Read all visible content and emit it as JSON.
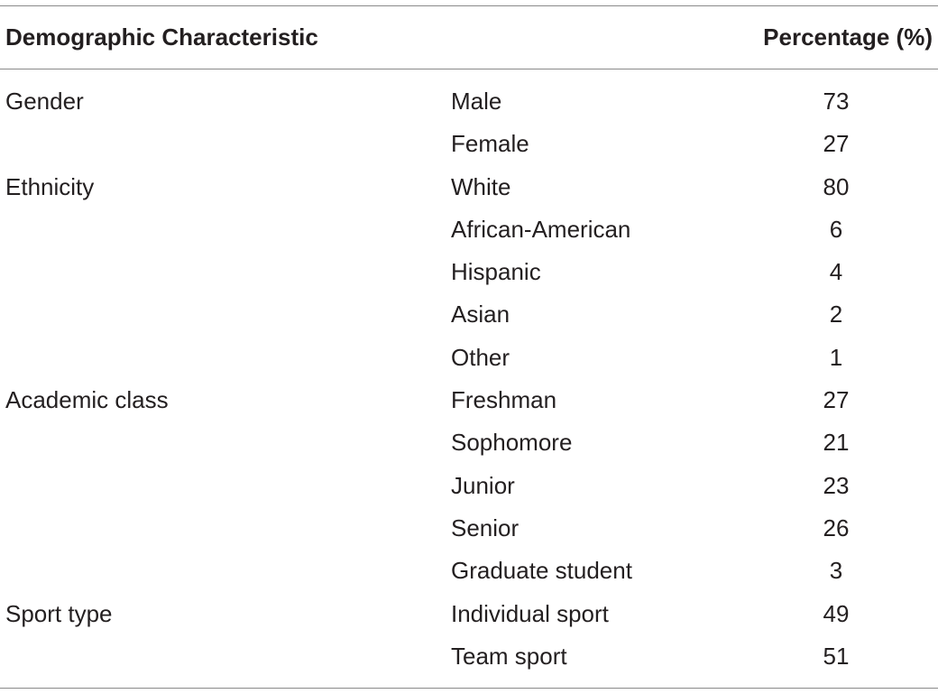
{
  "header": {
    "characteristic": "Demographic Characteristic",
    "percentage": "Percentage (%)"
  },
  "rows": [
    {
      "category": "Gender",
      "subcategory": "Male",
      "value": "73"
    },
    {
      "category": "",
      "subcategory": "Female",
      "value": "27"
    },
    {
      "category": "Ethnicity",
      "subcategory": "White",
      "value": "80"
    },
    {
      "category": "",
      "subcategory": "African-American",
      "value": "6"
    },
    {
      "category": "",
      "subcategory": "Hispanic",
      "value": "4"
    },
    {
      "category": "",
      "subcategory": "Asian",
      "value": "2"
    },
    {
      "category": "",
      "subcategory": "Other",
      "value": "1"
    },
    {
      "category": "Academic class",
      "subcategory": "Freshman",
      "value": "27"
    },
    {
      "category": "",
      "subcategory": "Sophomore",
      "value": "21"
    },
    {
      "category": "",
      "subcategory": "Junior",
      "value": "23"
    },
    {
      "category": "",
      "subcategory": "Senior",
      "value": "26"
    },
    {
      "category": "",
      "subcategory": "Graduate student",
      "value": "3"
    },
    {
      "category": "Sport type",
      "subcategory": "Individual sport",
      "value": "49"
    },
    {
      "category": "",
      "subcategory": "Team sport",
      "value": "51"
    }
  ]
}
